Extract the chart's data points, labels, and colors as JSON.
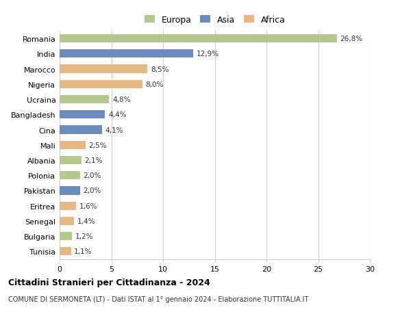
{
  "countries": [
    "Romania",
    "India",
    "Marocco",
    "Nigeria",
    "Ucraina",
    "Bangladesh",
    "Cina",
    "Mali",
    "Albania",
    "Polonia",
    "Pakistan",
    "Eritrea",
    "Senegal",
    "Bulgaria",
    "Tunisia"
  ],
  "values": [
    26.8,
    12.9,
    8.5,
    8.0,
    4.8,
    4.4,
    4.1,
    2.5,
    2.1,
    2.0,
    2.0,
    1.6,
    1.4,
    1.2,
    1.1
  ],
  "labels": [
    "26,8%",
    "12,9%",
    "8,5%",
    "8,0%",
    "4,8%",
    "4,4%",
    "4,1%",
    "2,5%",
    "2,1%",
    "2,0%",
    "2,0%",
    "1,6%",
    "1,4%",
    "1,2%",
    "1,1%"
  ],
  "continents": [
    "Europa",
    "Asia",
    "Africa",
    "Africa",
    "Europa",
    "Asia",
    "Asia",
    "Africa",
    "Europa",
    "Europa",
    "Asia",
    "Africa",
    "Africa",
    "Europa",
    "Africa"
  ],
  "colors": {
    "Europa": "#b5c98e",
    "Asia": "#6b8cbf",
    "Africa": "#e8b882"
  },
  "xlim": [
    0,
    30
  ],
  "xticks": [
    0,
    5,
    10,
    15,
    20,
    25,
    30
  ],
  "title": "Cittadini Stranieri per Cittadinanza - 2024",
  "subtitle": "COMUNE DI SERMONETA (LT) - Dati ISTAT al 1° gennaio 2024 - Elaborazione TUTTITALIA.IT",
  "background_color": "#ffffff",
  "grid_color": "#cccccc",
  "bar_height": 0.55
}
